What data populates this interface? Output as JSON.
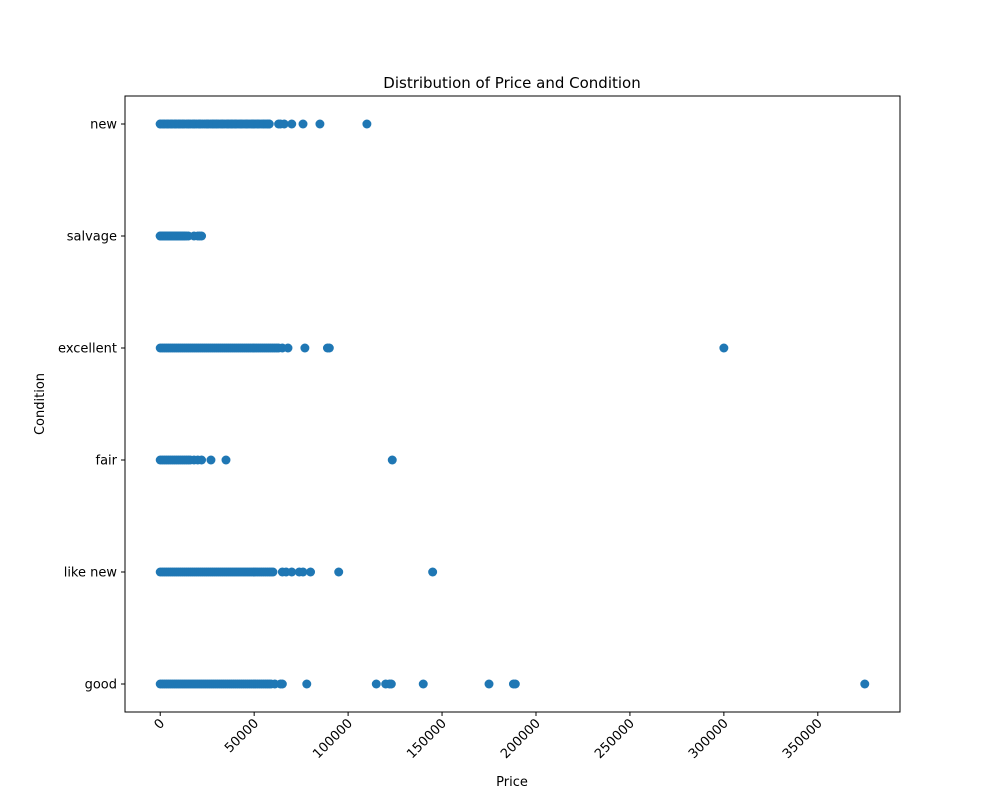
{
  "chart_data": {
    "type": "scatter",
    "title": "Distribution of Price and Condition",
    "xlabel": "Price",
    "ylabel": "Condition",
    "xlim": [
      -18750,
      393750
    ],
    "x_ticks": [
      0,
      50000,
      100000,
      150000,
      200000,
      250000,
      300000,
      350000
    ],
    "x_tick_labels": [
      "0",
      "50000",
      "100000",
      "150000",
      "200000",
      "250000",
      "300000",
      "350000"
    ],
    "categories": [
      "good",
      "like new",
      "fair",
      "excellent",
      "salvage",
      "new"
    ],
    "grid": false,
    "marker_color": "#1f77b4",
    "series": [
      {
        "category": "new",
        "dense_ranges": [
          [
            0,
            58000
          ]
        ],
        "x": [
          0,
          2000,
          4000,
          6000,
          8000,
          10000,
          12000,
          15000,
          18000,
          21000,
          25000,
          28000,
          30000,
          33000,
          36000,
          38000,
          40000,
          43000,
          46000,
          49000,
          52000,
          55000,
          57000,
          58000,
          63000,
          64000,
          66000,
          70000,
          76000,
          85000,
          110000
        ]
      },
      {
        "category": "salvage",
        "dense_ranges": [
          [
            0,
            13000
          ]
        ],
        "x": [
          0,
          1000,
          2000,
          3000,
          4000,
          5000,
          6000,
          7000,
          8000,
          9000,
          10000,
          11000,
          12000,
          13000,
          14000,
          15000,
          18000,
          20000,
          21000,
          22000
        ]
      },
      {
        "category": "excellent",
        "dense_ranges": [
          [
            0,
            62000
          ]
        ],
        "x": [
          63000,
          65000,
          68000,
          77000,
          89000,
          90000,
          300000
        ]
      },
      {
        "category": "fair",
        "dense_ranges": [
          [
            0,
            15000
          ]
        ],
        "x": [
          16000,
          18000,
          20000,
          22000,
          27000,
          35000,
          123500
        ]
      },
      {
        "category": "like new",
        "dense_ranges": [
          [
            0,
            58000
          ]
        ],
        "x": [
          59000,
          60000,
          65000,
          67000,
          70000,
          74000,
          76000,
          80000,
          95000,
          145000
        ]
      },
      {
        "category": "good",
        "dense_ranges": [
          [
            0,
            56000
          ]
        ],
        "x": [
          57000,
          58000,
          59000,
          61000,
          64000,
          65000,
          78000,
          115000,
          120000,
          122000,
          123000,
          140000,
          175000,
          188000,
          189000,
          375000
        ]
      }
    ]
  }
}
